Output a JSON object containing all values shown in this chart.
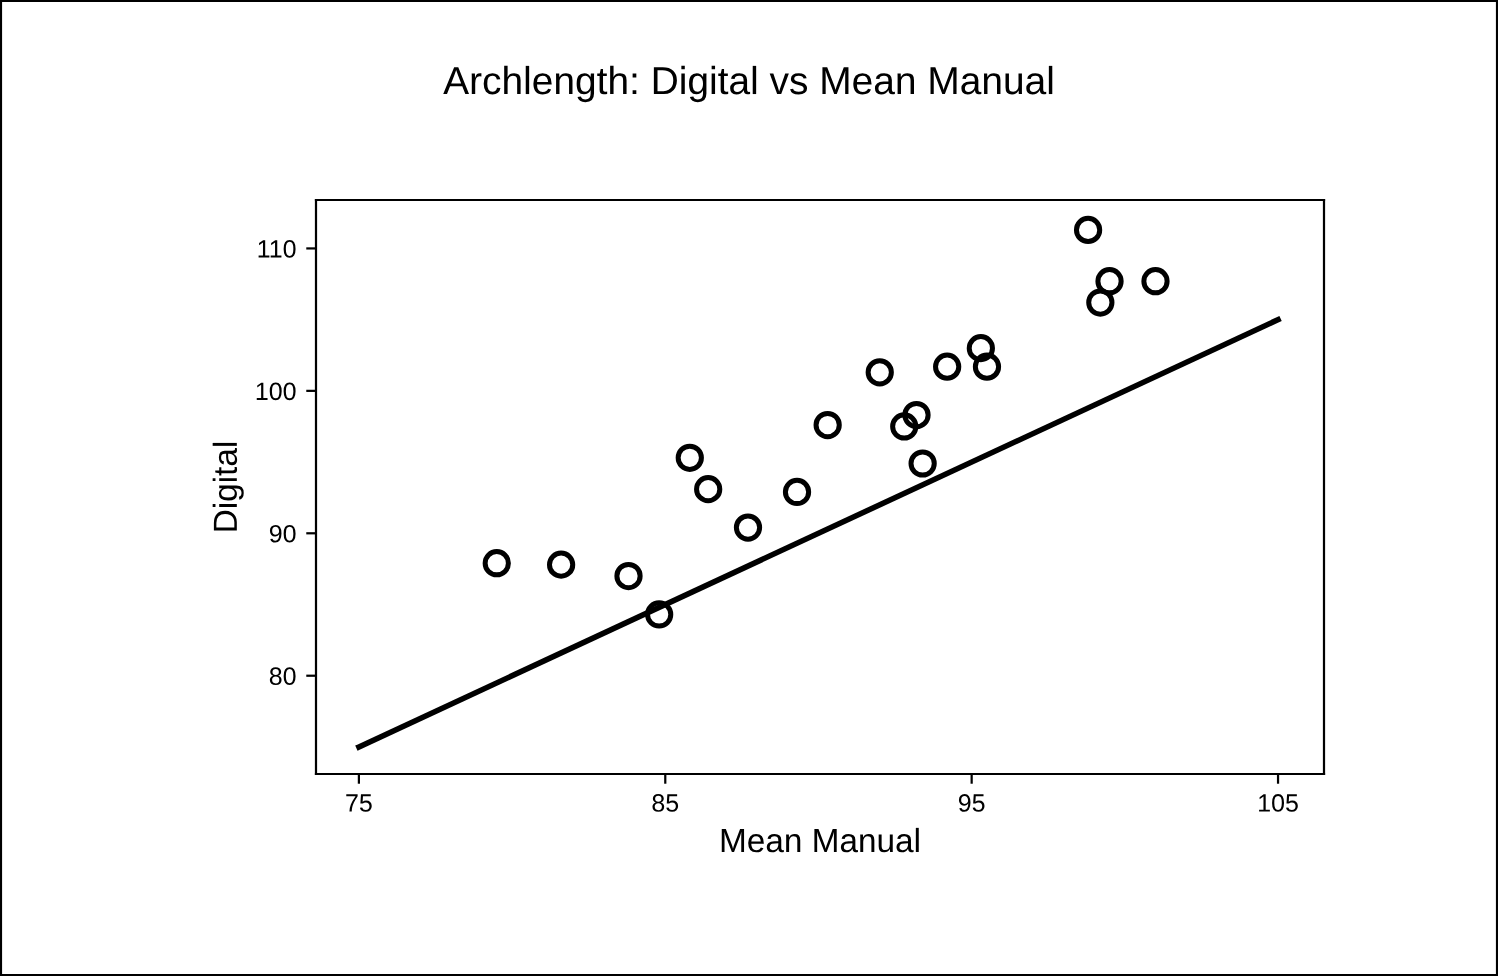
{
  "chart_data": {
    "type": "scatter",
    "title": "Archlength: Digital vs Mean Manual",
    "xlabel": "Mean Manual",
    "ylabel": "Digital",
    "xlim": [
      73.6,
      106.5
    ],
    "ylim": [
      73.1,
      113.4
    ],
    "xticks": [
      75,
      85,
      95,
      105
    ],
    "yticks": [
      80,
      90,
      100,
      110
    ],
    "grid": false,
    "series": [
      {
        "marker": "circle",
        "color": "#000000",
        "x": [
          79.5,
          81.6,
          83.8,
          84.8,
          85.8,
          86.4,
          87.7,
          89.3,
          90.3,
          92.0,
          92.8,
          93.2,
          93.4,
          94.2,
          95.3,
          95.5,
          98.8,
          99.2,
          99.5,
          101.0
        ],
        "values": [
          87.9,
          87.8,
          87.0,
          84.3,
          95.3,
          93.1,
          90.4,
          92.9,
          97.6,
          101.3,
          97.5,
          98.3,
          94.9,
          101.7,
          103.0,
          101.7,
          111.3,
          106.2,
          107.7,
          107.7
        ]
      },
      {
        "type": "line",
        "color": "#000000",
        "x": [
          75,
          105
        ],
        "values": [
          75,
          105
        ]
      }
    ]
  }
}
